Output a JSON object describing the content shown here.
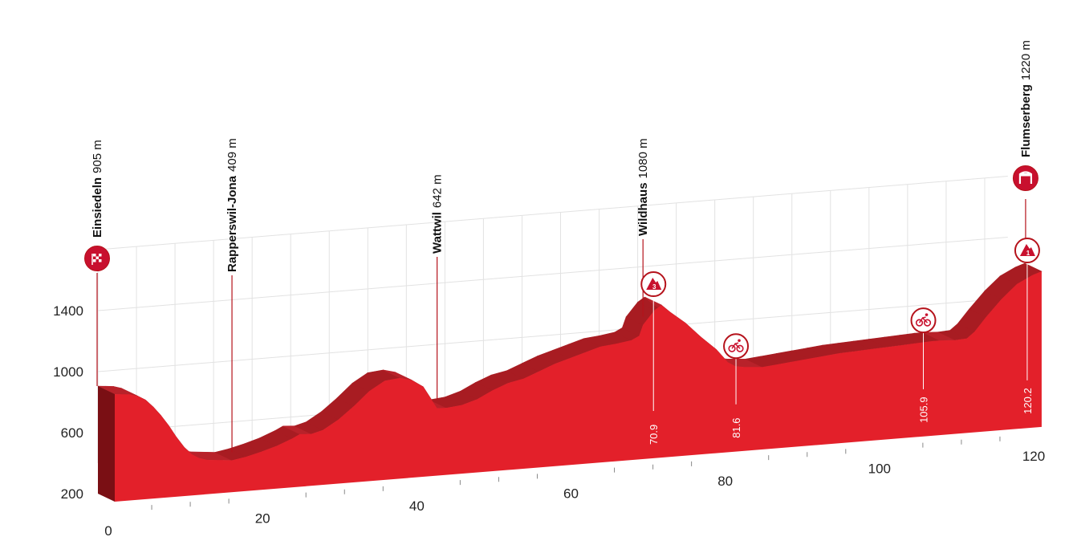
{
  "chart_data": {
    "type": "area",
    "x_ticks": [
      0,
      20,
      40,
      60,
      80,
      100,
      120
    ],
    "y_ticks": [
      200,
      600,
      1000,
      1400
    ],
    "xlim": [
      0,
      120.2
    ],
    "ylim": [
      200,
      1400
    ],
    "grid": true,
    "profile": [
      {
        "km": 0,
        "alt": 905
      },
      {
        "km": 1,
        "alt": 900
      },
      {
        "km": 2,
        "alt": 895
      },
      {
        "km": 3,
        "alt": 880
      },
      {
        "km": 4,
        "alt": 850
      },
      {
        "km": 5,
        "alt": 800
      },
      {
        "km": 6,
        "alt": 740
      },
      {
        "km": 7,
        "alt": 670
      },
      {
        "km": 8,
        "alt": 590
      },
      {
        "km": 9,
        "alt": 520
      },
      {
        "km": 10,
        "alt": 470
      },
      {
        "km": 11,
        "alt": 440
      },
      {
        "km": 12,
        "alt": 425
      },
      {
        "km": 14,
        "alt": 415
      },
      {
        "km": 15.2,
        "alt": 409
      },
      {
        "km": 17,
        "alt": 425
      },
      {
        "km": 19,
        "alt": 450
      },
      {
        "km": 21,
        "alt": 480
      },
      {
        "km": 23,
        "alt": 520
      },
      {
        "km": 24,
        "alt": 545
      },
      {
        "km": 25.5,
        "alt": 540
      },
      {
        "km": 27,
        "alt": 560
      },
      {
        "km": 29,
        "alt": 620
      },
      {
        "km": 31,
        "alt": 700
      },
      {
        "km": 33,
        "alt": 790
      },
      {
        "km": 35,
        "alt": 850
      },
      {
        "km": 37,
        "alt": 860
      },
      {
        "km": 38.5,
        "alt": 840
      },
      {
        "km": 40,
        "alt": 790
      },
      {
        "km": 41.8,
        "alt": 642
      },
      {
        "km": 43,
        "alt": 640
      },
      {
        "km": 45,
        "alt": 650
      },
      {
        "km": 47,
        "alt": 680
      },
      {
        "km": 49,
        "alt": 730
      },
      {
        "km": 51,
        "alt": 770
      },
      {
        "km": 53,
        "alt": 790
      },
      {
        "km": 55,
        "alt": 830
      },
      {
        "km": 57,
        "alt": 870
      },
      {
        "km": 59,
        "alt": 900
      },
      {
        "km": 61,
        "alt": 930
      },
      {
        "km": 63,
        "alt": 960
      },
      {
        "km": 65,
        "alt": 970
      },
      {
        "km": 67,
        "alt": 985
      },
      {
        "km": 68,
        "alt": 1010
      },
      {
        "km": 68.5,
        "alt": 1080
      },
      {
        "km": 70,
        "alt": 1170
      },
      {
        "km": 70.9,
        "alt": 1200
      },
      {
        "km": 72,
        "alt": 1150
      },
      {
        "km": 74,
        "alt": 1070
      },
      {
        "km": 76,
        "alt": 970
      },
      {
        "km": 78,
        "alt": 880
      },
      {
        "km": 79.5,
        "alt": 790
      },
      {
        "km": 80.5,
        "alt": 760
      },
      {
        "km": 81.6,
        "alt": 750
      },
      {
        "km": 84,
        "alt": 740
      },
      {
        "km": 86,
        "alt": 750
      },
      {
        "km": 88,
        "alt": 760
      },
      {
        "km": 90,
        "alt": 770
      },
      {
        "km": 92,
        "alt": 780
      },
      {
        "km": 94,
        "alt": 790
      },
      {
        "km": 96,
        "alt": 795
      },
      {
        "km": 98,
        "alt": 800
      },
      {
        "km": 100,
        "alt": 805
      },
      {
        "km": 102,
        "alt": 810
      },
      {
        "km": 104,
        "alt": 815
      },
      {
        "km": 105.9,
        "alt": 820
      },
      {
        "km": 107,
        "alt": 820
      },
      {
        "km": 109,
        "alt": 815
      },
      {
        "km": 110.5,
        "alt": 820
      },
      {
        "km": 111.5,
        "alt": 860
      },
      {
        "km": 113,
        "alt": 950
      },
      {
        "km": 115,
        "alt": 1060
      },
      {
        "km": 117,
        "alt": 1150
      },
      {
        "km": 119,
        "alt": 1200
      },
      {
        "km": 120.2,
        "alt": 1220
      }
    ],
    "locations": [
      {
        "name": "Einsiedeln",
        "altitude": "905 m",
        "km": 0,
        "alt": 905,
        "icon": "checkered-flag-icon"
      },
      {
        "name": "Rapperswil-Jona",
        "altitude": "409 m",
        "km": 15.2,
        "alt": 409
      },
      {
        "name": "Wattwil",
        "altitude": "642 m",
        "km": 41.8,
        "alt": 642
      },
      {
        "name": "Wildhaus",
        "altitude": "1080 m",
        "km": 68.5,
        "alt": 1080
      },
      {
        "name": "Flumserberg",
        "altitude": "1220 m",
        "km": 120.2,
        "alt": 1220,
        "icon": "finish-arch-icon"
      }
    ],
    "markers": [
      {
        "km_label": "70.9",
        "km": 70.9,
        "alt": 1200,
        "icon": "mountain-cat-3-icon",
        "category": "3"
      },
      {
        "km_label": "81.6",
        "km": 81.6,
        "alt": 750,
        "icon": "sprint-bike-icon"
      },
      {
        "km_label": "105.9",
        "km": 105.9,
        "alt": 820,
        "icon": "sprint-bike-icon"
      },
      {
        "km_label": "120.2",
        "km": 120.2,
        "alt": 1220,
        "icon": "mountain-cat-1-icon",
        "category": "1"
      }
    ]
  },
  "colors": {
    "front": "#e3202a",
    "top_surface": "#a81c22",
    "dark_edge": "#7a0f14",
    "grid": "#e2e2e2",
    "text": "#111111"
  }
}
